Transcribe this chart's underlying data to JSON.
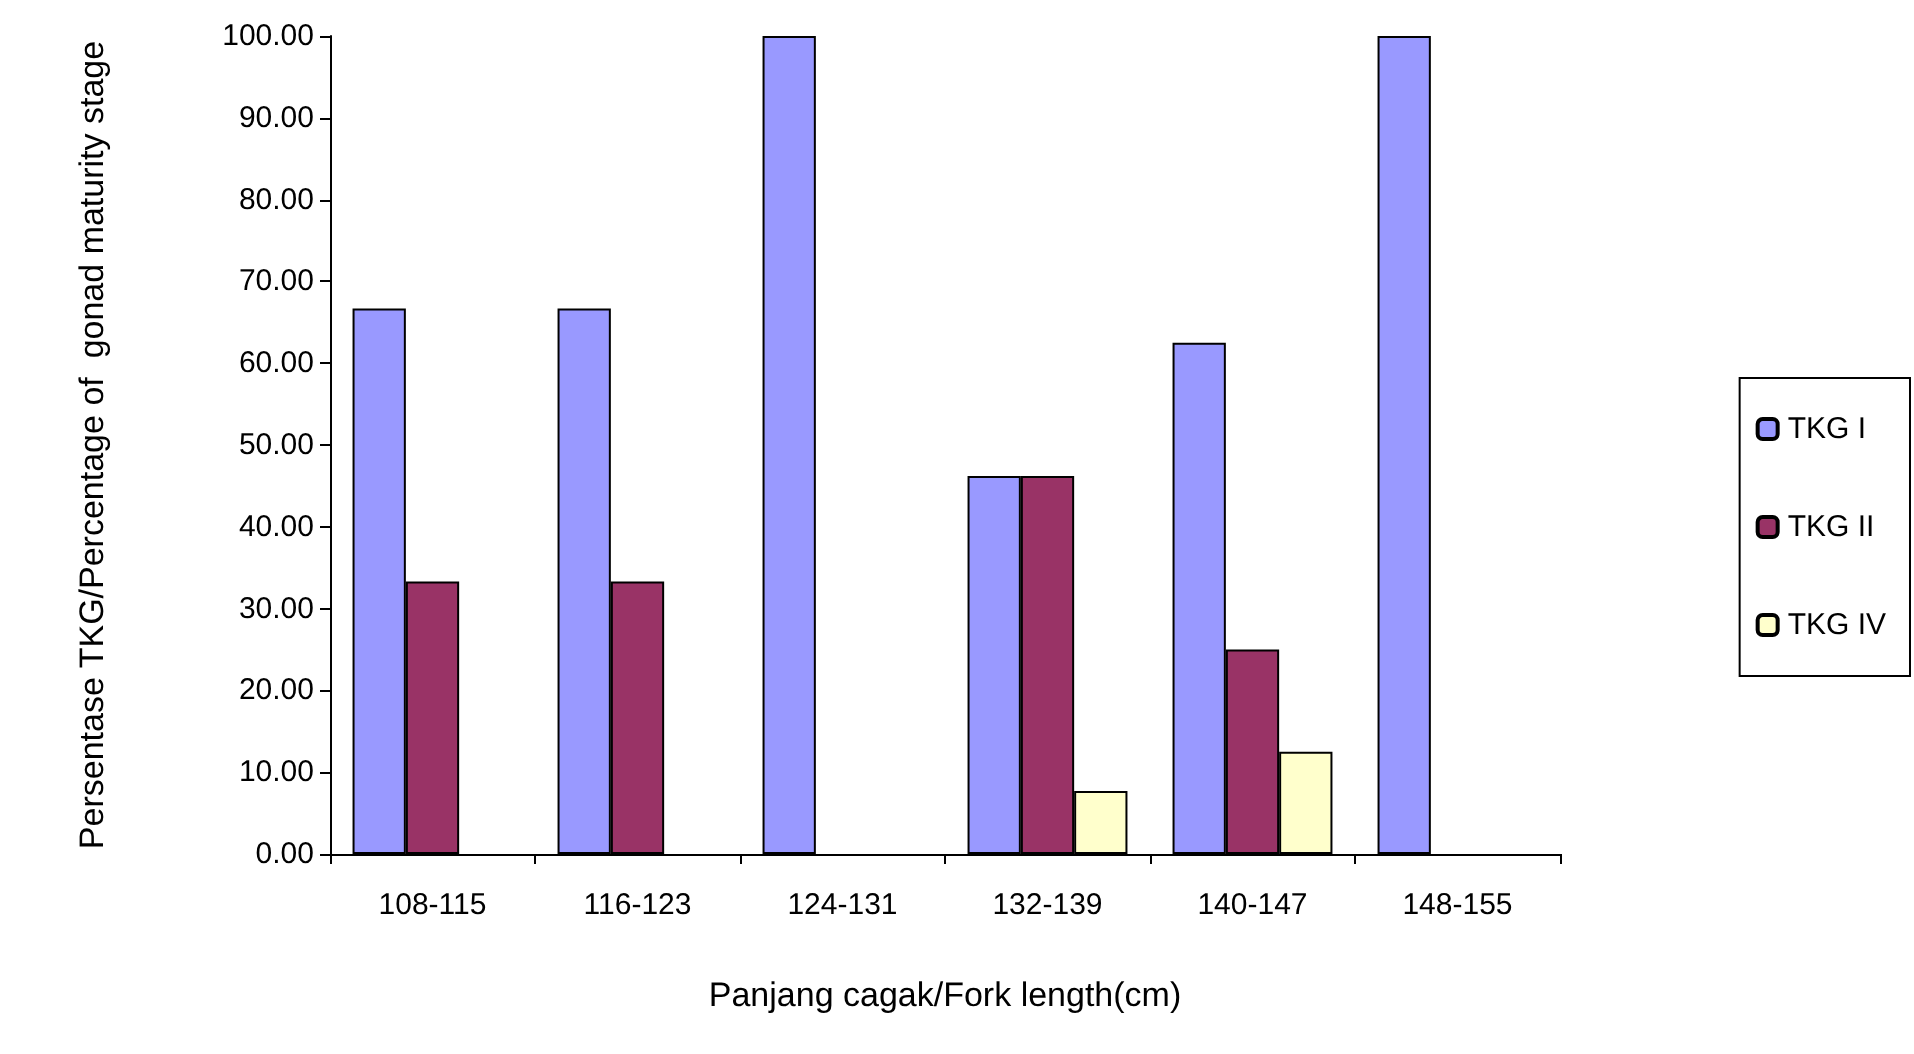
{
  "chart_data": {
    "type": "bar",
    "xlabel": "Panjang cagak/Fork length(cm)",
    "ylabel": "Persentase TKG/Percentage of  gonad maturity stage",
    "categories": [
      "108-115",
      "116-123",
      "124-131",
      "132-139",
      "140-147",
      "148-155"
    ],
    "series": [
      {
        "name": "TKG I",
        "color": "#9999ff",
        "values": [
          66.7,
          66.7,
          100,
          46.2,
          62.5,
          100
        ]
      },
      {
        "name": "TKG II",
        "color": "#993366",
        "values": [
          33.3,
          33.3,
          null,
          46.2,
          25,
          null
        ]
      },
      {
        "name": "TKG IV",
        "color": "#ffffcc",
        "values": [
          null,
          null,
          null,
          7.7,
          12.5,
          null
        ]
      }
    ],
    "ylim": [
      0,
      100
    ],
    "yticks": [
      {
        "value": 0,
        "label": "0.00"
      },
      {
        "value": 10,
        "label": "10.00"
      },
      {
        "value": 20,
        "label": "20.00"
      },
      {
        "value": 30,
        "label": "30.00"
      },
      {
        "value": 40,
        "label": "40.00"
      },
      {
        "value": 50,
        "label": "50.00"
      },
      {
        "value": 60,
        "label": "60.00"
      },
      {
        "value": 70,
        "label": "70.00"
      },
      {
        "value": 80,
        "label": "80.00"
      },
      {
        "value": 90,
        "label": "90.00"
      },
      {
        "value": 100,
        "label": "100.00"
      }
    ],
    "grid": false,
    "legend": "right"
  }
}
